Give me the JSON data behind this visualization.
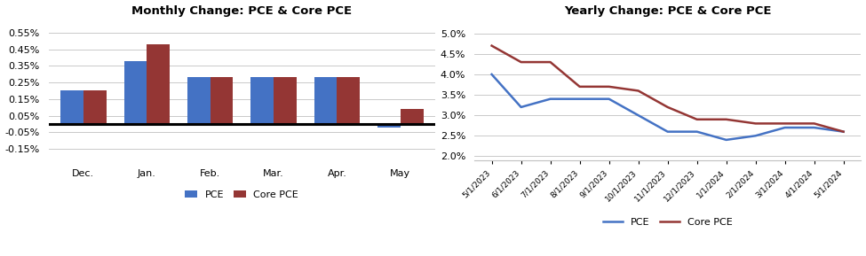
{
  "bar_categories": [
    "Dec.",
    "Jan.",
    "Feb.",
    "Mar.",
    "Apr.",
    "May"
  ],
  "bar_pce": [
    0.002,
    0.0038,
    0.0028,
    0.0028,
    0.0028,
    -0.0002
  ],
  "bar_core_pce": [
    0.002,
    0.0048,
    0.0028,
    0.0028,
    0.0028,
    0.0009
  ],
  "bar_pce_color": "#4472C4",
  "bar_core_pce_color": "#943634",
  "bar_title": "Monthly Change: PCE & Core PCE",
  "bar_yticks": [
    -0.0015,
    -0.0005,
    0.0005,
    0.0015,
    0.0025,
    0.0035,
    0.0045,
    0.0055
  ],
  "bar_yticklabels": [
    "-0.15%",
    "-0.05%",
    "0.05%",
    "0.15%",
    "0.25%",
    "0.35%",
    "0.45%",
    "0.55%"
  ],
  "bar_ylim_lo": -0.0022,
  "bar_ylim_hi": 0.0062,
  "line_dates": [
    "5/1/2023",
    "6/1/2023",
    "7/1/2023",
    "8/1/2023",
    "9/1/2023",
    "10/1/2023",
    "11/1/2023",
    "12/1/2023",
    "1/1/2024",
    "2/1/2024",
    "3/1/2024",
    "4/1/2024",
    "5/1/2024"
  ],
  "line_pce": [
    0.04,
    0.032,
    0.034,
    0.034,
    0.034,
    0.03,
    0.026,
    0.026,
    0.024,
    0.025,
    0.027,
    0.027,
    0.026
  ],
  "line_core_pce": [
    0.047,
    0.043,
    0.043,
    0.037,
    0.037,
    0.036,
    0.032,
    0.029,
    0.029,
    0.028,
    0.028,
    0.028,
    0.026
  ],
  "line_pce_color": "#4472C4",
  "line_core_pce_color": "#943634",
  "line_title": "Yearly Change: PCE & Core PCE",
  "line_yticks": [
    0.02,
    0.025,
    0.03,
    0.035,
    0.04,
    0.045,
    0.05
  ],
  "line_yticklabels": [
    "2.0%",
    "2.5%",
    "3.0%",
    "3.5%",
    "4.0%",
    "4.5%",
    "5.0%"
  ],
  "line_ylim_lo": 0.019,
  "line_ylim_hi": 0.053,
  "bg_color": "#FFFFFF",
  "grid_color": "#C0C0C0"
}
